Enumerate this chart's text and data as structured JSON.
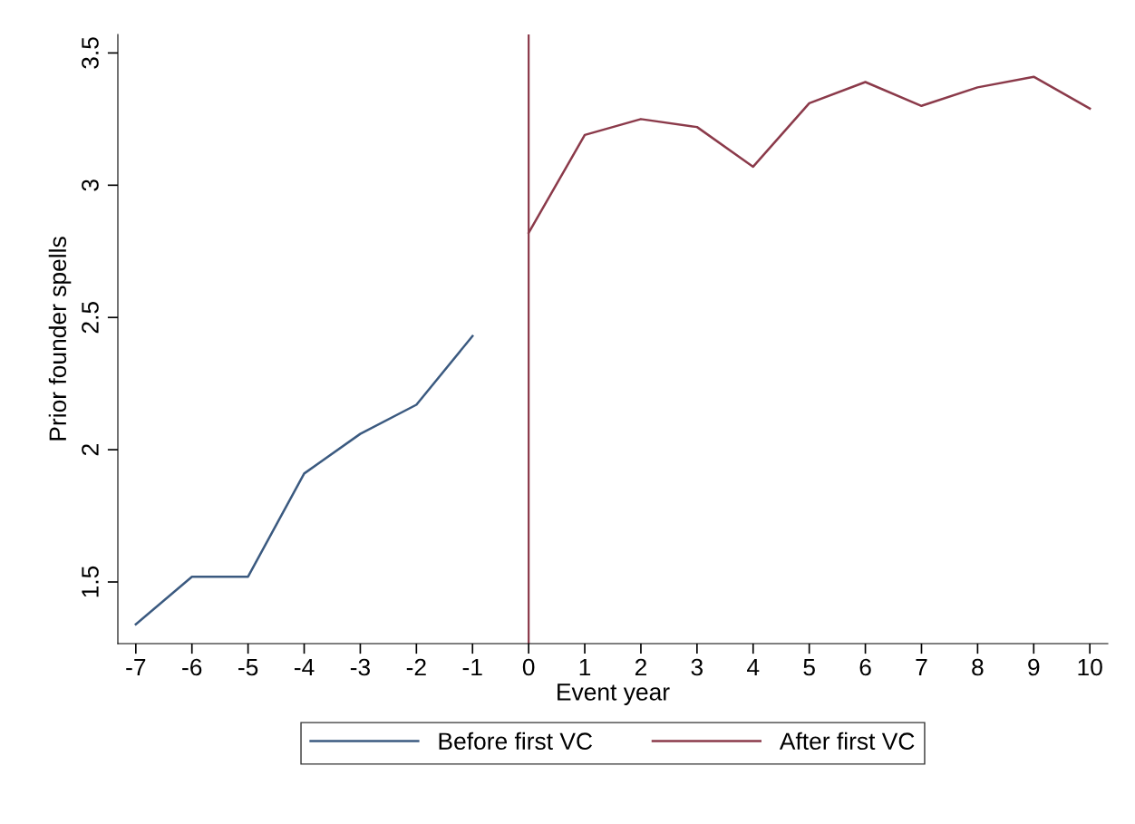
{
  "chart_data": {
    "type": "line",
    "xlabel": "Event year",
    "ylabel": "Prior founder spells",
    "xlim": [
      -7.32,
      10.32
    ],
    "ylim": [
      1.267,
      3.57
    ],
    "xticks": [
      -7,
      -6,
      -5,
      -4,
      -3,
      -2,
      -1,
      0,
      1,
      2,
      3,
      4,
      5,
      6,
      7,
      8,
      9,
      10
    ],
    "yticks": [
      1.5,
      2,
      2.5,
      3,
      3.5
    ],
    "grid": false,
    "legend": "bottom",
    "marker": "none",
    "line_style": "solid",
    "ref_lines": [
      {
        "axis": "x",
        "value": 0,
        "label": null,
        "color": "#8b3a4a"
      }
    ],
    "series": [
      {
        "name": "Before first VC",
        "color": "#3b5a80",
        "x": [
          -7,
          -6,
          -5,
          -4,
          -3,
          -2,
          -1
        ],
        "values": [
          1.34,
          1.52,
          1.52,
          1.91,
          2.06,
          2.17,
          2.43
        ]
      },
      {
        "name": "After first VC",
        "color": "#8b3a4a",
        "x": [
          0,
          1,
          2,
          3,
          4,
          5,
          6,
          7,
          8,
          9,
          10
        ],
        "values": [
          2.82,
          3.19,
          3.25,
          3.22,
          3.07,
          3.31,
          3.39,
          3.3,
          3.37,
          3.41,
          3.29
        ]
      }
    ]
  }
}
